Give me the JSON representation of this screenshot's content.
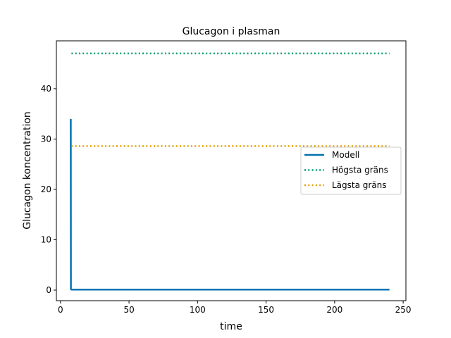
{
  "chart_data": {
    "type": "line",
    "title": "Glucagon i plasman",
    "xlabel": "time",
    "ylabel": "Glucagon koncentration",
    "xlim": [
      -3,
      252
    ],
    "ylim": [
      -2.1,
      49.5
    ],
    "xticks": [
      0,
      50,
      100,
      150,
      200,
      250
    ],
    "yticks": [
      0,
      10,
      20,
      30,
      40
    ],
    "grid": false,
    "legend_position": "center-right",
    "series": [
      {
        "name": "Modell",
        "color": "#0072b2",
        "style": "solid",
        "x": [
          7.5,
          7.6,
          8,
          240
        ],
        "y": [
          34.0,
          0.2,
          0.1,
          0.1
        ]
      },
      {
        "name": "Högsta gräns",
        "color": "#009e73",
        "style": "dotted",
        "x": [
          8,
          240
        ],
        "y": [
          47.0,
          47.0
        ]
      },
      {
        "name": "Lägsta gräns",
        "color": "#e69f00",
        "style": "dotted",
        "x": [
          8,
          240
        ],
        "y": [
          28.6,
          28.6
        ]
      }
    ]
  }
}
